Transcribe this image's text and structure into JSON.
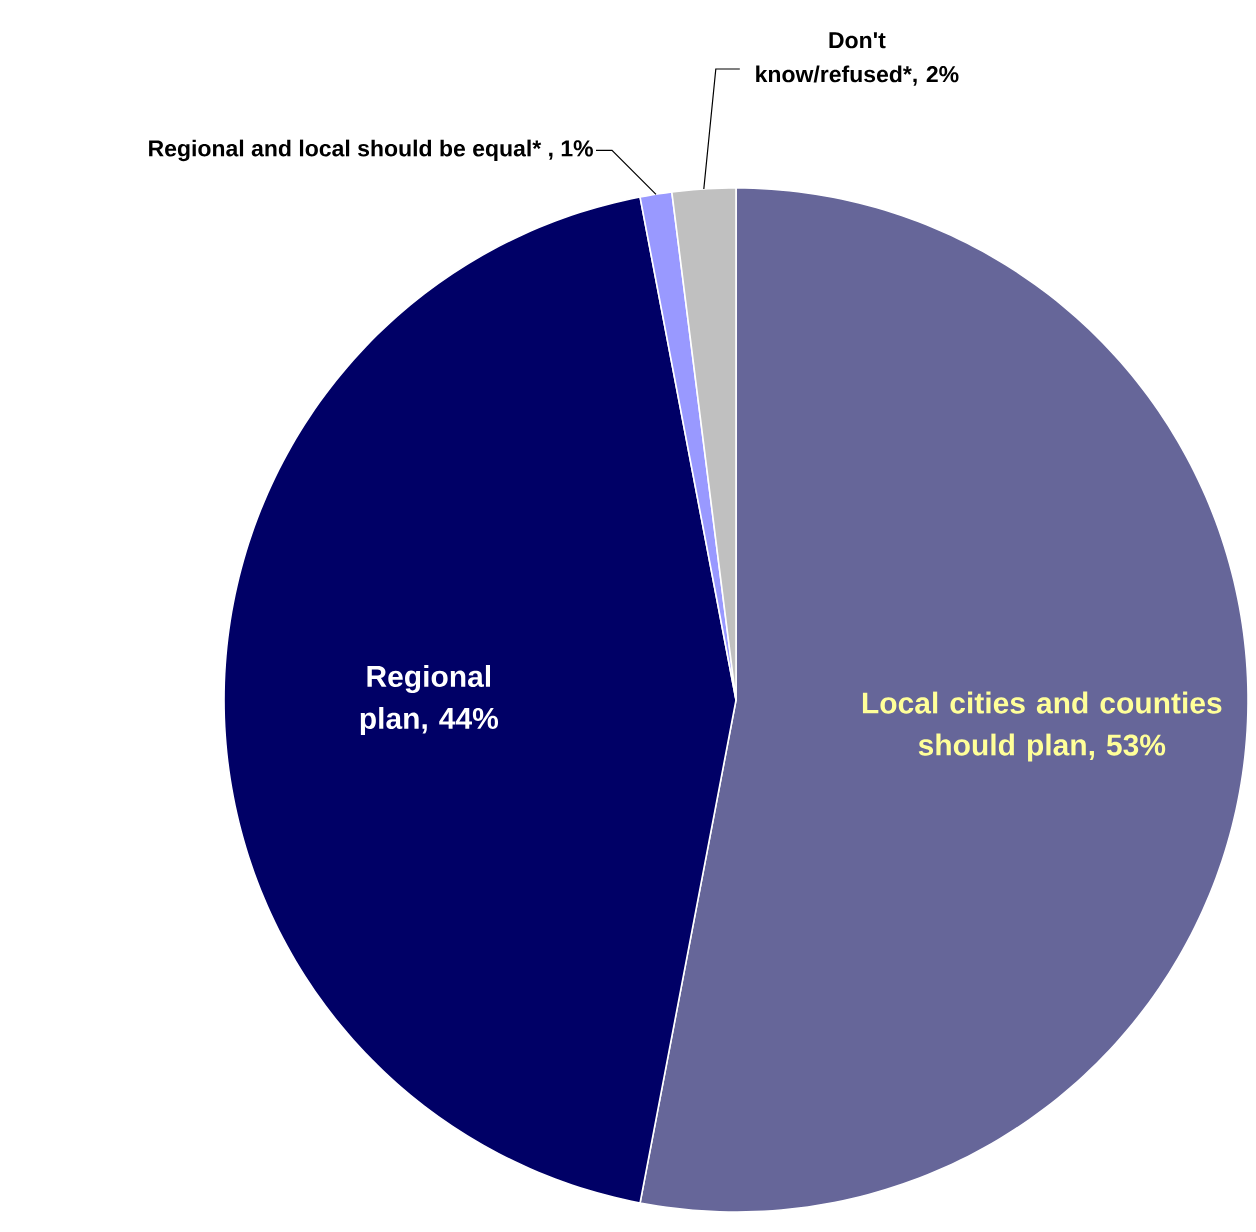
{
  "chart_data": {
    "type": "pie",
    "categories": [
      "Local cities and counties should plan",
      "Regional plan",
      "Regional and local should be equal* ",
      "Don't know/refused*"
    ],
    "values": [
      53,
      44,
      1,
      2
    ],
    "colors": [
      "#666699",
      "#000066",
      "#9999ff",
      "#c0c0c0"
    ],
    "value_labels": [
      ", 53%",
      ", 44%",
      ", 1%",
      ", 2%"
    ]
  }
}
